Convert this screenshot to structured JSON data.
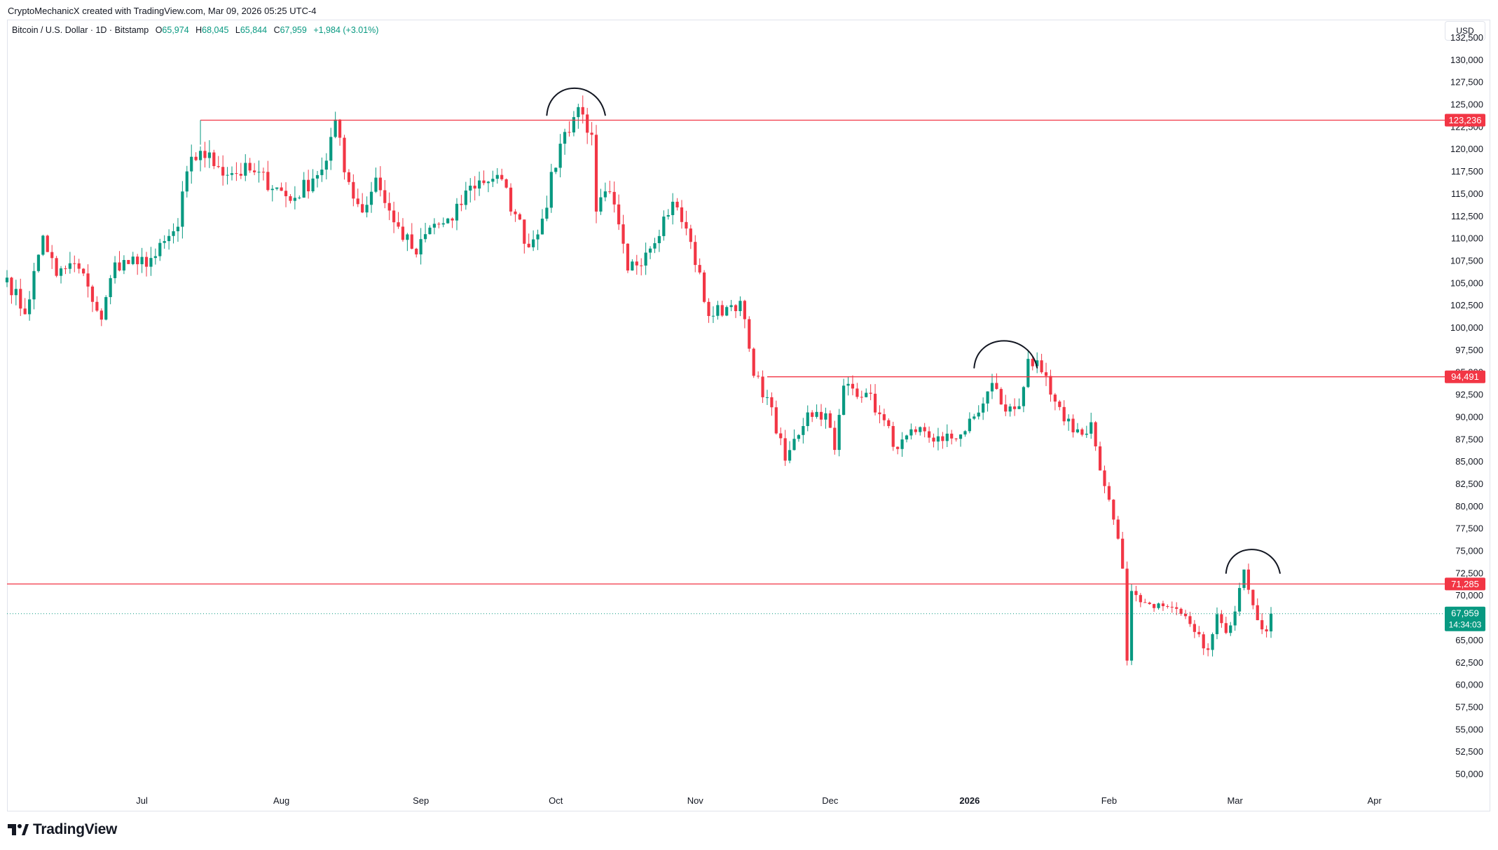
{
  "header": {
    "credit": "CryptoMechanicX created with TradingView.com, Mar 09, 2026 05:25 UTC-4"
  },
  "symbol": {
    "name": "Bitcoin / U.S. Dollar · 1D · Bitstamp",
    "open_label": "O",
    "open": "65,974",
    "high_label": "H",
    "high": "68,045",
    "low_label": "L",
    "low": "65,844",
    "close_label": "C",
    "close": "67,959",
    "change": "+1,984 (+3.01%)"
  },
  "currency": "USD",
  "brand": {
    "name": "TradingView",
    "icon": "tradingview-logo-icon"
  },
  "colors": {
    "up": "#089981",
    "down": "#f23645",
    "line": "#f23645",
    "grid_text": "#131722",
    "price_line": "#089981"
  },
  "chart_data": {
    "type": "candlestick",
    "title": "",
    "timeframe": "1D",
    "ylim": [
      48000,
      134500
    ],
    "y_ticks": [
      50000,
      52500,
      55000,
      57500,
      60000,
      62500,
      65000,
      67500,
      70000,
      72500,
      75000,
      77500,
      80000,
      82500,
      85000,
      87500,
      90000,
      92500,
      95000,
      97500,
      100000,
      102500,
      105000,
      107500,
      110000,
      112500,
      115000,
      117500,
      120000,
      122500,
      125000,
      127500,
      130000,
      132500
    ],
    "y_tick_labels": [
      "50,000",
      "52,500",
      "55,000",
      "57,500",
      "60,000",
      "62,500",
      "65,000",
      "67,500",
      "70,000",
      "72,500",
      "75,000",
      "77,500",
      "80,000",
      "82,500",
      "85,000",
      "87,500",
      "90,000",
      "92,500",
      "95,000",
      "97,500",
      "100,000",
      "102,500",
      "105,000",
      "107,500",
      "110,000",
      "112,500",
      "115,000",
      "117,500",
      "120,000",
      "122,500",
      "125,000",
      "127,500",
      "130,000",
      "132,500"
    ],
    "x_start_date": "2025-06-01",
    "x_ticks": [
      {
        "label": "Jul",
        "date": "2025-07-01",
        "bold": false
      },
      {
        "label": "Aug",
        "date": "2025-08-01",
        "bold": false
      },
      {
        "label": "Sep",
        "date": "2025-09-01",
        "bold": false
      },
      {
        "label": "Oct",
        "date": "2025-10-01",
        "bold": false
      },
      {
        "label": "Nov",
        "date": "2025-11-01",
        "bold": false
      },
      {
        "label": "Dec",
        "date": "2025-12-01",
        "bold": false
      },
      {
        "label": "2026",
        "date": "2026-01-01",
        "bold": true
      },
      {
        "label": "Feb",
        "date": "2026-02-01",
        "bold": false
      },
      {
        "label": "Mar",
        "date": "2026-03-01",
        "bold": false
      },
      {
        "label": "Apr",
        "date": "2026-04-01",
        "bold": false
      }
    ],
    "horizontal_lines": [
      {
        "price": 123236,
        "label": "123,236",
        "start_date": "2025-07-14"
      },
      {
        "price": 94491,
        "label": "94,491",
        "start_date": "2025-11-17"
      },
      {
        "price": 71285,
        "label": "71,285",
        "start_date": "2025-06-01"
      }
    ],
    "last_price": {
      "price": 67959,
      "label": "67,959",
      "countdown": "14:34:03"
    },
    "annotations": [
      {
        "type": "arc",
        "start_date": "2025-09-29",
        "end_date": "2025-10-12",
        "base": 123800,
        "peak": 127200
      },
      {
        "type": "arc",
        "start_date": "2026-01-02",
        "end_date": "2026-01-16",
        "base": 95500,
        "peak": 98900
      },
      {
        "type": "arc",
        "start_date": "2026-02-27",
        "end_date": "2026-03-11",
        "base": 72500,
        "peak": 75400
      }
    ],
    "closes": [
      {
        "date": "2025-06-01",
        "close": 105600
      },
      {
        "date": "2025-06-05",
        "close": 101500
      },
      {
        "date": "2025-06-09",
        "close": 110300
      },
      {
        "date": "2025-06-12",
        "close": 105800
      },
      {
        "date": "2025-06-16",
        "close": 107200
      },
      {
        "date": "2025-06-19",
        "close": 104600
      },
      {
        "date": "2025-06-22",
        "close": 100900
      },
      {
        "date": "2025-06-25",
        "close": 107300
      },
      {
        "date": "2025-06-30",
        "close": 107100
      },
      {
        "date": "2025-07-04",
        "close": 108000
      },
      {
        "date": "2025-07-09",
        "close": 111300
      },
      {
        "date": "2025-07-11",
        "close": 117500
      },
      {
        "date": "2025-07-14",
        "close": 119800
      },
      {
        "date": "2025-07-18",
        "close": 118000
      },
      {
        "date": "2025-07-21",
        "close": 117300
      },
      {
        "date": "2025-07-25",
        "close": 117600
      },
      {
        "date": "2025-07-31",
        "close": 115700
      },
      {
        "date": "2025-08-03",
        "close": 114200
      },
      {
        "date": "2025-08-08",
        "close": 116700
      },
      {
        "date": "2025-08-11",
        "close": 118700
      },
      {
        "date": "2025-08-13",
        "close": 123300
      },
      {
        "date": "2025-08-15",
        "close": 117400
      },
      {
        "date": "2025-08-19",
        "close": 112900
      },
      {
        "date": "2025-08-22",
        "close": 116800
      },
      {
        "date": "2025-08-26",
        "close": 111800
      },
      {
        "date": "2025-08-31",
        "close": 108200
      },
      {
        "date": "2025-09-03",
        "close": 111200
      },
      {
        "date": "2025-09-08",
        "close": 112000
      },
      {
        "date": "2025-09-12",
        "close": 115900
      },
      {
        "date": "2025-09-18",
        "close": 117100
      },
      {
        "date": "2025-09-22",
        "close": 112700
      },
      {
        "date": "2025-09-25",
        "close": 109000
      },
      {
        "date": "2025-09-28",
        "close": 112200
      },
      {
        "date": "2025-10-02",
        "close": 120600
      },
      {
        "date": "2025-10-06",
        "close": 124700
      },
      {
        "date": "2025-10-09",
        "close": 121600
      },
      {
        "date": "2025-10-10",
        "close": 113000
      },
      {
        "date": "2025-10-13",
        "close": 115200
      },
      {
        "date": "2025-10-17",
        "close": 106400
      },
      {
        "date": "2025-10-21",
        "close": 108400
      },
      {
        "date": "2025-10-27",
        "close": 114100
      },
      {
        "date": "2025-10-31",
        "close": 109600
      },
      {
        "date": "2025-11-04",
        "close": 101300
      },
      {
        "date": "2025-11-08",
        "close": 102300
      },
      {
        "date": "2025-11-11",
        "close": 103000
      },
      {
        "date": "2025-11-14",
        "close": 94600
      },
      {
        "date": "2025-11-17",
        "close": 92200
      },
      {
        "date": "2025-11-21",
        "close": 85100
      },
      {
        "date": "2025-11-26",
        "close": 90500
      },
      {
        "date": "2025-11-30",
        "close": 90400
      },
      {
        "date": "2025-12-02",
        "close": 86300
      },
      {
        "date": "2025-12-04",
        "close": 93500
      },
      {
        "date": "2025-12-09",
        "close": 92700
      },
      {
        "date": "2025-12-12",
        "close": 90300
      },
      {
        "date": "2025-12-16",
        "close": 86400
      },
      {
        "date": "2025-12-20",
        "close": 88300
      },
      {
        "date": "2025-12-26",
        "close": 87300
      },
      {
        "date": "2025-12-31",
        "close": 88400
      },
      {
        "date": "2026-01-04",
        "close": 91500
      },
      {
        "date": "2026-01-06",
        "close": 93800
      },
      {
        "date": "2026-01-09",
        "close": 90600
      },
      {
        "date": "2026-01-12",
        "close": 91200
      },
      {
        "date": "2026-01-14",
        "close": 96500
      },
      {
        "date": "2026-01-17",
        "close": 95000
      },
      {
        "date": "2026-01-19",
        "close": 92500
      },
      {
        "date": "2026-01-22",
        "close": 89500
      },
      {
        "date": "2026-01-26",
        "close": 88000
      },
      {
        "date": "2026-01-28",
        "close": 89400
      },
      {
        "date": "2026-01-30",
        "close": 84000
      },
      {
        "date": "2026-02-02",
        "close": 78500
      },
      {
        "date": "2026-02-04",
        "close": 73000
      },
      {
        "date": "2026-02-05",
        "close": 62700
      },
      {
        "date": "2026-02-06",
        "close": 70500
      },
      {
        "date": "2026-02-09",
        "close": 69200
      },
      {
        "date": "2026-02-13",
        "close": 68800
      },
      {
        "date": "2026-02-16",
        "close": 68500
      },
      {
        "date": "2026-02-19",
        "close": 66800
      },
      {
        "date": "2026-02-23",
        "close": 63900
      },
      {
        "date": "2026-02-25",
        "close": 67900
      },
      {
        "date": "2026-02-27",
        "close": 65800
      },
      {
        "date": "2026-03-01",
        "close": 68200
      },
      {
        "date": "2026-03-03",
        "close": 72900
      },
      {
        "date": "2026-03-05",
        "close": 68900
      },
      {
        "date": "2026-03-07",
        "close": 66200
      },
      {
        "date": "2026-03-08",
        "close": 65974
      },
      {
        "date": "2026-03-09",
        "close": 67959
      }
    ]
  }
}
